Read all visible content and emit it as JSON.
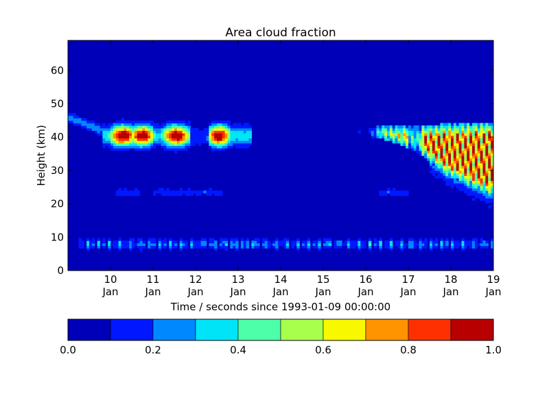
{
  "chart_data": {
    "type": "heatmap",
    "title": "Area cloud fraction",
    "xlabel": "Time / seconds since 1993-01-09 00:00:00",
    "ylabel": "Height (km)",
    "xlim": [
      "1993-01-09T00:00",
      "1993-01-19T00:00"
    ],
    "x_ticks": [
      {
        "day": "10",
        "month": "Jan"
      },
      {
        "day": "11",
        "month": "Jan"
      },
      {
        "day": "12",
        "month": "Jan"
      },
      {
        "day": "13",
        "month": "Jan"
      },
      {
        "day": "14",
        "month": "Jan"
      },
      {
        "day": "15",
        "month": "Jan"
      },
      {
        "day": "16",
        "month": "Jan"
      },
      {
        "day": "17",
        "month": "Jan"
      },
      {
        "day": "18",
        "month": "Jan"
      },
      {
        "day": "19",
        "month": "Jan"
      }
    ],
    "ylim": [
      0,
      69
    ],
    "y_ticks": [
      "0",
      "10",
      "20",
      "30",
      "40",
      "50",
      "60"
    ],
    "colormap": "jet",
    "colorbar": {
      "levels": [
        0.0,
        0.1,
        0.2,
        0.3,
        0.4,
        0.5,
        0.6,
        0.7,
        0.8,
        0.9,
        1.0
      ],
      "tick_labels": [
        "0.0",
        "0.2",
        "0.4",
        "0.6",
        "0.8",
        "1.0"
      ],
      "colors": [
        "#0000b8",
        "#0018ff",
        "#0088ff",
        "#00e4f8",
        "#4cffa8",
        "#a8ff4c",
        "#f8f800",
        "#ff9400",
        "#ff3000",
        "#b80000"
      ]
    },
    "features": [
      {
        "desc": "thin layer descending",
        "t0": "1993-01-09T00:00",
        "t1": "1993-01-10T00:00",
        "z0": 46,
        "z1": 41,
        "max": 0.25
      },
      {
        "desc": "cloud band",
        "t0": "1993-01-10T02:00",
        "t1": "1993-01-13T02:00",
        "zc": 40.5,
        "dz": 3,
        "max": 1.0
      },
      {
        "desc": "low cloud",
        "t0": "1993-01-09T06:00",
        "t1": "1993-01-19T00:00",
        "zc": 8,
        "dz": 1.5,
        "max": 0.4
      },
      {
        "desc": "large cloud system",
        "t0": "1993-01-16T00:00",
        "t1": "1993-01-19T00:00",
        "z_top": 44,
        "z_bottom": 22,
        "max": 1.0
      }
    ]
  }
}
